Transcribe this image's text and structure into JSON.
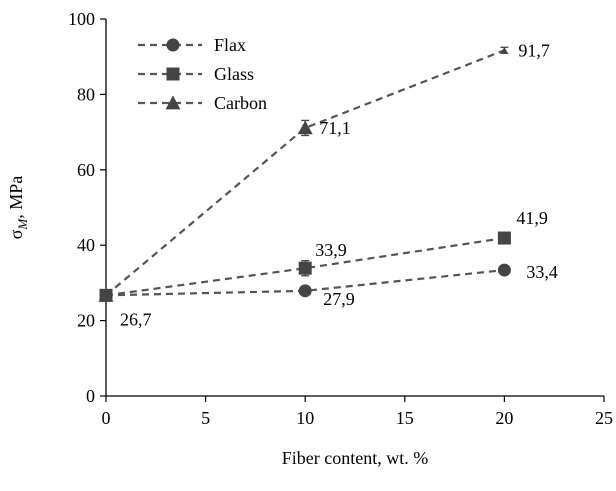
{
  "chart_data": {
    "type": "line",
    "xlabel": "Fiber content, wt. %",
    "ylabel": {
      "main": "σ",
      "sub": "M",
      "suffix": ", MPa"
    },
    "xlim": [
      0,
      25
    ],
    "ylim": [
      0,
      100
    ],
    "xticks": [
      0,
      5,
      10,
      15,
      20,
      25
    ],
    "yticks": [
      0,
      20,
      40,
      60,
      80,
      100
    ],
    "grid": false,
    "legend": {
      "position": "top-left"
    },
    "series": [
      {
        "name": "Flax",
        "marker": "circle",
        "x": [
          0,
          10,
          20
        ],
        "y": [
          26.7,
          27.9,
          33.4
        ],
        "error": [
          0.8,
          0.8,
          0.8
        ],
        "labels": [
          "",
          "27,9",
          "33,4"
        ]
      },
      {
        "name": "Glass",
        "marker": "square",
        "x": [
          0,
          10,
          20
        ],
        "y": [
          26.7,
          33.9,
          41.9
        ],
        "error": [
          0.8,
          2.0,
          1.0
        ],
        "labels": [
          "",
          "33,9",
          "41,9"
        ]
      },
      {
        "name": "Carbon",
        "marker": "triangle",
        "x": [
          0,
          10,
          20
        ],
        "y": [
          26.7,
          71.1,
          91.7
        ],
        "error": [
          0.8,
          2.0,
          0.8
        ],
        "labels": [
          "26,7",
          "71,1",
          "91,7"
        ]
      }
    ],
    "colors": {
      "line": "#555555",
      "marker": "#444444",
      "axis": "#000000"
    }
  }
}
